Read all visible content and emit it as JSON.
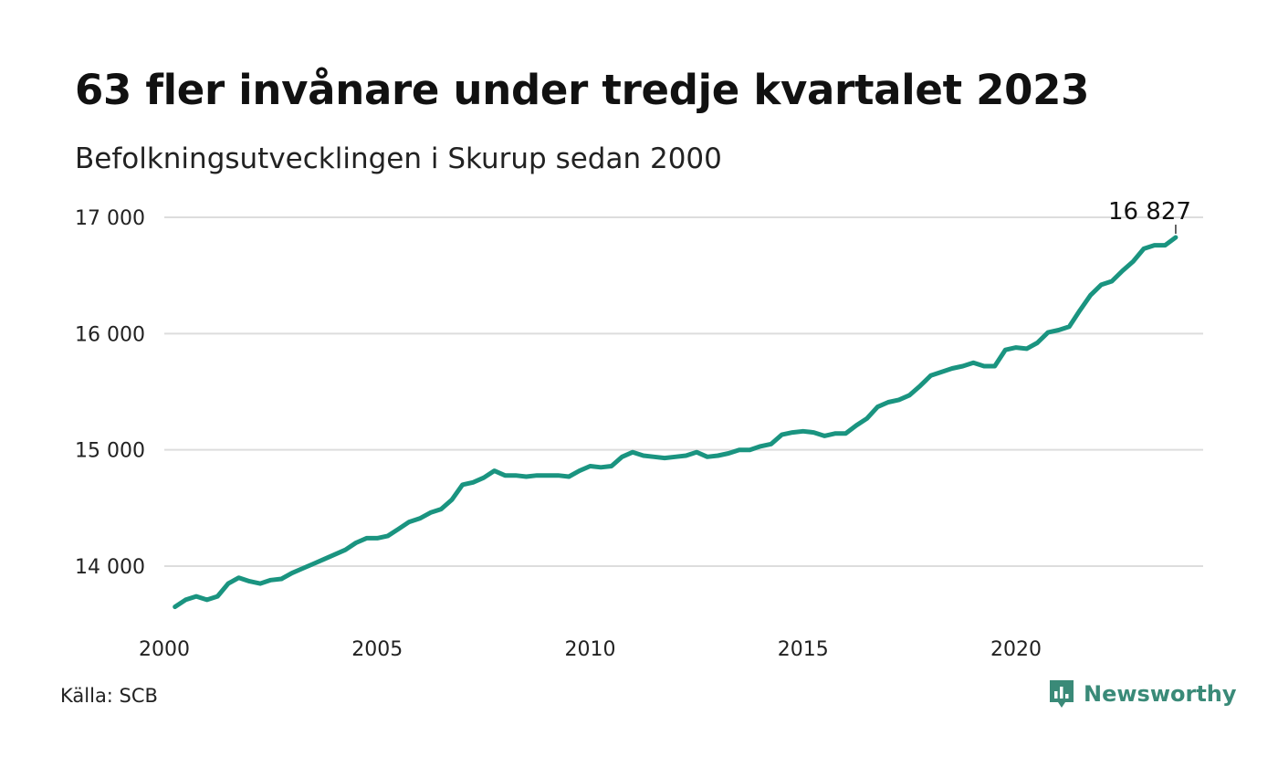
{
  "header": {
    "title": "63 fler invånare under tredje kvartalet 2023",
    "subtitle": "Befolkningsutvecklingen i Skurup sedan 2000"
  },
  "footer": {
    "source": "Källa: SCB",
    "brand": "Newsworthy",
    "brand_icon": "bar-chart-speech-bubble-icon"
  },
  "colors": {
    "line": "#1a9480",
    "grid": "#dddddd",
    "brand": "#3a8a78"
  },
  "chart_data": {
    "type": "line",
    "y_ticks": [
      14000,
      15000,
      16000,
      17000
    ],
    "y_tick_labels": [
      "14 000",
      "15 000",
      "16 000",
      "17 000"
    ],
    "x_ticks": [
      2000,
      2005,
      2010,
      2015,
      2020
    ],
    "x_tick_labels": [
      "2000",
      "2005",
      "2010",
      "2015",
      "2020"
    ],
    "ylim": [
      13500,
      17150
    ],
    "xlim": [
      2000,
      2024.5
    ],
    "grid": "horizontal",
    "end_label": "16 827",
    "series": [
      {
        "x": [
          2000.25,
          2000.5,
          2000.75,
          2001.0,
          2001.25,
          2001.5,
          2001.75,
          2002.0,
          2002.25,
          2002.5,
          2002.75,
          2003.0,
          2003.25,
          2003.5,
          2003.75,
          2004.0,
          2004.25,
          2004.5,
          2004.75,
          2005.0,
          2005.25,
          2005.5,
          2005.75,
          2006.0,
          2006.25,
          2006.5,
          2006.75,
          2007.0,
          2007.25,
          2007.5,
          2007.75,
          2008.0,
          2008.25,
          2008.5,
          2008.75,
          2009.0,
          2009.25,
          2009.5,
          2009.75,
          2010.0,
          2010.25,
          2010.5,
          2010.75,
          2011.0,
          2011.25,
          2011.5,
          2011.75,
          2012.0,
          2012.25,
          2012.5,
          2012.75,
          2013.0,
          2013.25,
          2013.5,
          2013.75,
          2014.0,
          2014.25,
          2014.5,
          2014.75,
          2015.0,
          2015.25,
          2015.5,
          2015.75,
          2016.0,
          2016.25,
          2016.5,
          2016.75,
          2017.0,
          2017.25,
          2017.5,
          2017.75,
          2018.0,
          2018.25,
          2018.5,
          2018.75,
          2019.0,
          2019.25,
          2019.5,
          2019.75,
          2020.0,
          2020.25,
          2020.5,
          2020.75,
          2021.0,
          2021.25,
          2021.5,
          2021.75,
          2022.0,
          2022.25,
          2022.5,
          2022.75,
          2023.0,
          2023.25,
          2023.5,
          2023.75
        ],
        "values": [
          13650,
          13710,
          13740,
          13710,
          13740,
          13850,
          13900,
          13870,
          13850,
          13880,
          13890,
          13940,
          13980,
          14020,
          14060,
          14100,
          14140,
          14200,
          14240,
          14240,
          14260,
          14320,
          14380,
          14410,
          14460,
          14490,
          14570,
          14700,
          14720,
          14760,
          14820,
          14780,
          14780,
          14770,
          14780,
          14780,
          14780,
          14770,
          14820,
          14860,
          14850,
          14860,
          14940,
          14980,
          14950,
          14940,
          14930,
          14940,
          14950,
          14980,
          14940,
          14950,
          14970,
          15000,
          15000,
          15030,
          15050,
          15130,
          15150,
          15160,
          15150,
          15120,
          15140,
          15140,
          15210,
          15270,
          15370,
          15410,
          15430,
          15470,
          15550,
          15640,
          15670,
          15700,
          15720,
          15750,
          15720,
          15720,
          15860,
          15880,
          15870,
          15920,
          16010,
          16030,
          16060,
          16200,
          16330,
          16420,
          16450,
          16540,
          16620,
          16730,
          16760,
          16760,
          16827
        ]
      }
    ]
  }
}
